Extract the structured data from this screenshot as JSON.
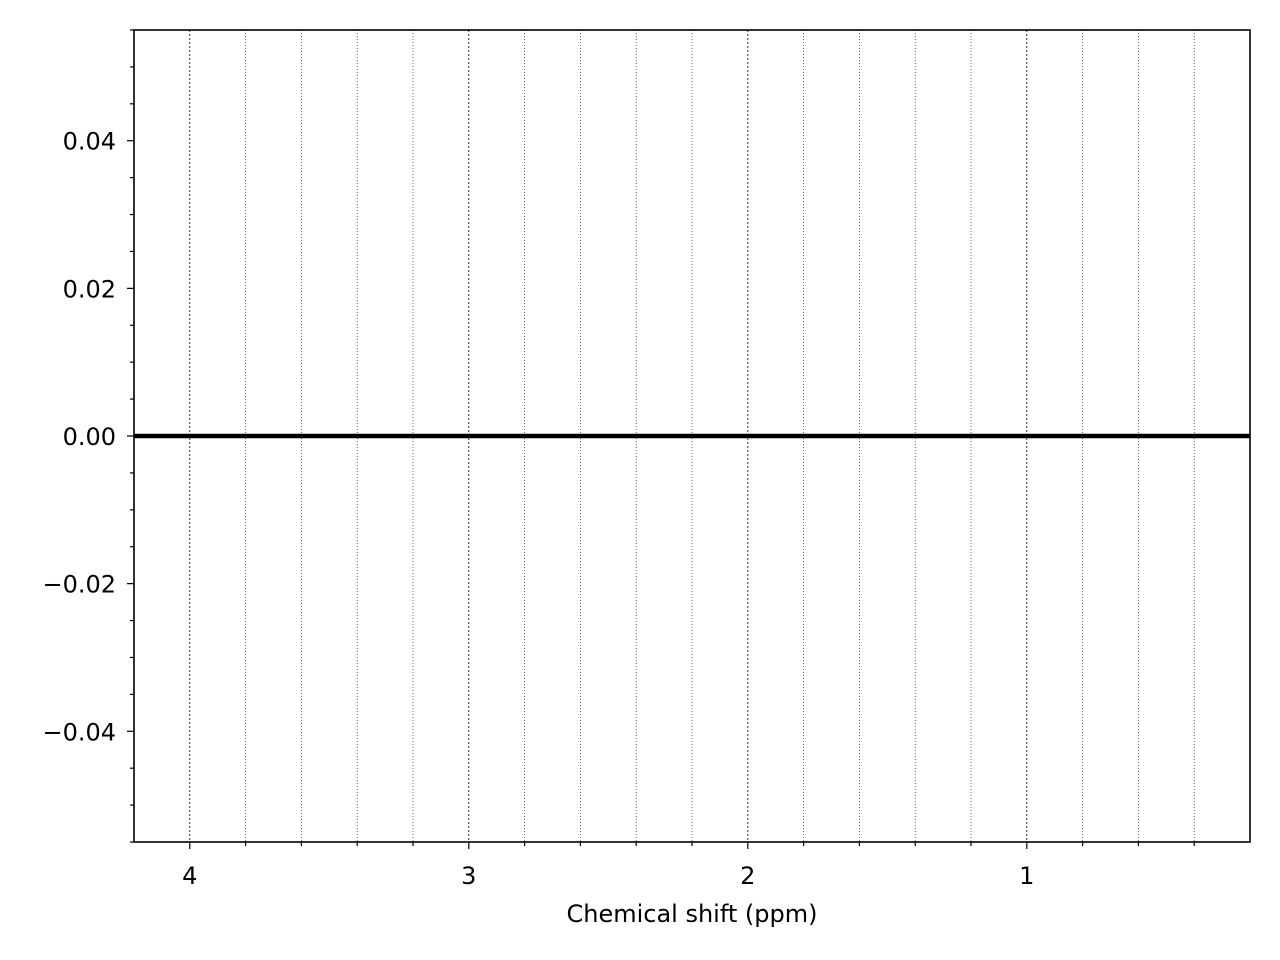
{
  "chart_data": {
    "type": "line",
    "title": "",
    "xlabel": "Chemical shift (ppm)",
    "ylabel": "",
    "x_inverted": true,
    "xlim": [
      4.2,
      0.2
    ],
    "ylim": [
      -0.055,
      0.055
    ],
    "x_major_ticks": [
      4,
      3,
      2,
      1
    ],
    "x_tick_labels": [
      "4",
      "3",
      "2",
      "1"
    ],
    "x_minor_tick_step": 0.2,
    "y_major_ticks": [
      0.04,
      0.02,
      0.0,
      -0.02,
      -0.04
    ],
    "y_tick_labels": [
      "0.04",
      "0.02",
      "0.00",
      "−0.02",
      "−0.04"
    ],
    "y_minor_tick_step": 0.005,
    "grid": "x only, dotted, major and minor",
    "legend": "none",
    "series": [
      {
        "x": [
          4.2,
          0.2
        ],
        "y": [
          0,
          0
        ],
        "color": "#000000"
      }
    ]
  }
}
